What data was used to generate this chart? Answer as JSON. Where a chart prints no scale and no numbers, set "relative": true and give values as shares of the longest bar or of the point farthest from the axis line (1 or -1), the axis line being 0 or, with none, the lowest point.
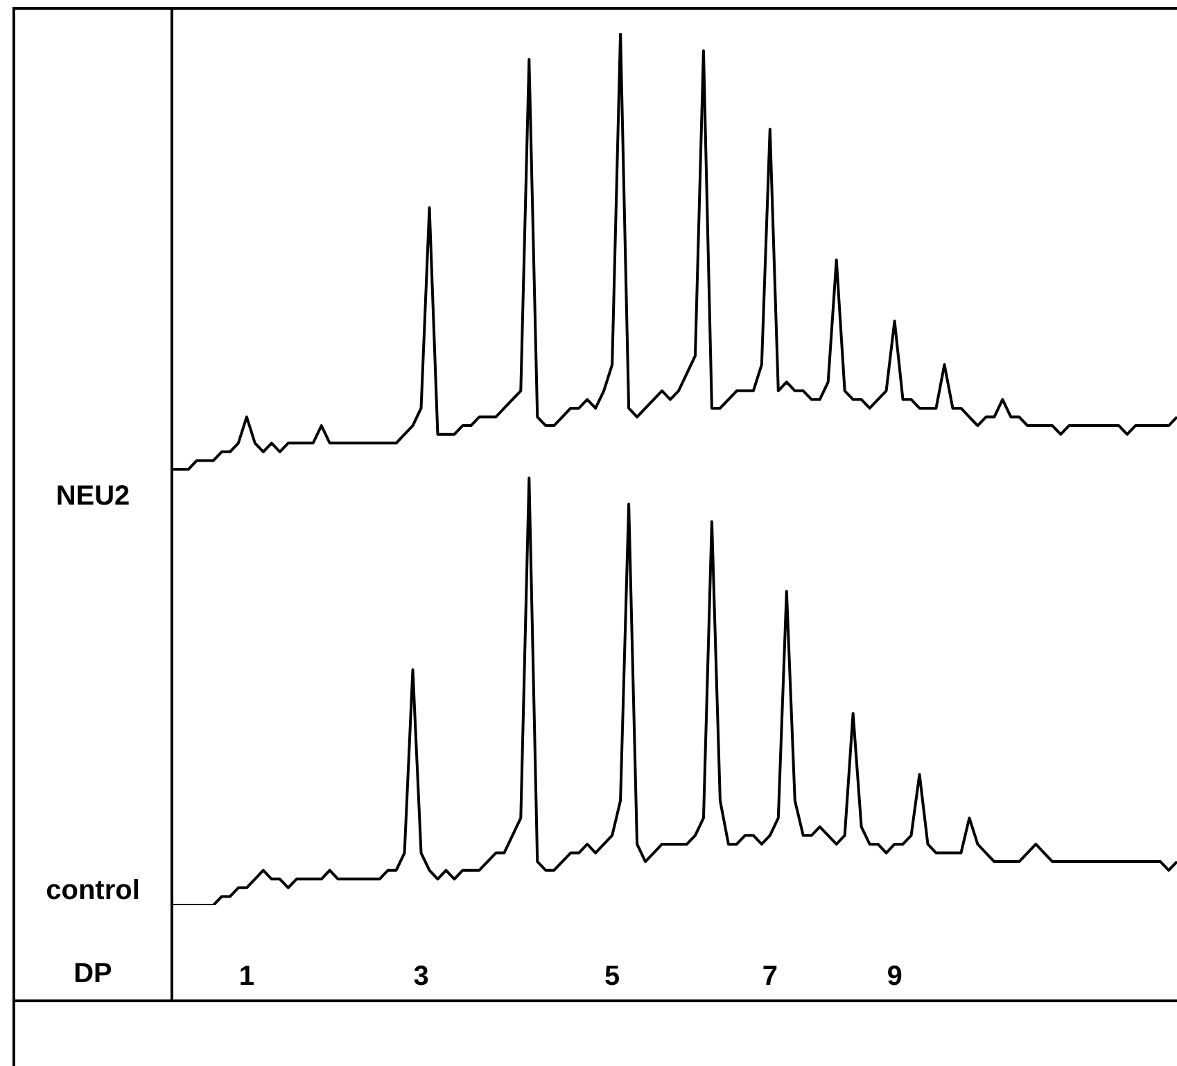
{
  "chart_data": {
    "type": "line",
    "relative": true,
    "xlabel": "DP",
    "categories": [
      null,
      null,
      null,
      null,
      null,
      null,
      null,
      null,
      null,
      "1",
      null,
      null,
      null,
      null,
      null,
      null,
      null,
      null,
      null,
      null,
      null,
      null,
      null,
      null,
      null,
      null,
      null,
      null,
      null,
      null,
      "3",
      null,
      null,
      null,
      null,
      null,
      null,
      null,
      null,
      null,
      null,
      null,
      null,
      null,
      null,
      null,
      null,
      null,
      null,
      null,
      null,
      null,
      null,
      "5",
      null,
      null,
      null,
      null,
      null,
      null,
      null,
      null,
      null,
      null,
      null,
      null,
      null,
      null,
      null,
      null,
      null,
      null,
      "7",
      null,
      null,
      null,
      null,
      null,
      null,
      null,
      null,
      null,
      null,
      null,
      null,
      null,
      null,
      "9",
      null,
      null,
      null,
      null,
      null,
      null,
      null,
      null,
      null,
      null,
      null,
      null,
      null,
      null,
      null,
      null,
      null,
      null,
      null,
      null,
      null,
      null,
      null,
      null,
      null,
      null,
      null,
      null,
      null,
      null,
      null,
      null,
      null,
      null
    ],
    "series": [
      {
        "name": "NEU2",
        "color": "#000000",
        "values": [
          0.5,
          0.5,
          0.5,
          0.51,
          0.51,
          0.51,
          0.52,
          0.52,
          0.53,
          0.56,
          0.53,
          0.52,
          0.53,
          0.52,
          0.53,
          0.53,
          0.53,
          0.53,
          0.55,
          0.53,
          0.53,
          0.53,
          0.53,
          0.53,
          0.53,
          0.53,
          0.53,
          0.53,
          0.54,
          0.55,
          0.57,
          0.8,
          0.54,
          0.54,
          0.54,
          0.55,
          0.55,
          0.56,
          0.56,
          0.56,
          0.57,
          0.58,
          0.59,
          0.97,
          0.56,
          0.55,
          0.55,
          0.56,
          0.57,
          0.57,
          0.58,
          0.57,
          0.59,
          0.62,
          1,
          0.57,
          0.56,
          0.57,
          0.58,
          0.59,
          0.58,
          0.59,
          0.61,
          0.63,
          0.98,
          0.57,
          0.57,
          0.58,
          0.59,
          0.59,
          0.59,
          0.62,
          0.89,
          0.59,
          0.6,
          0.59,
          0.59,
          0.58,
          0.58,
          0.6,
          0.74,
          0.59,
          0.58,
          0.58,
          0.57,
          0.58,
          0.59,
          0.67,
          0.58,
          0.58,
          0.57,
          0.57,
          0.57,
          0.62,
          0.57,
          0.57,
          0.56,
          0.55,
          0.56,
          0.56,
          0.58,
          0.56,
          0.56,
          0.55,
          0.55,
          0.55,
          0.55,
          0.54,
          0.55,
          0.55,
          0.55,
          0.55,
          0.55,
          0.55,
          0.55,
          0.54,
          0.55,
          0.55,
          0.55,
          0.55,
          0.55,
          0.56
        ]
      },
      {
        "name": "control",
        "color": "#000000",
        "values": [
          0.0,
          0.0,
          0.0,
          0,
          0.0,
          0.0,
          0.01,
          0.01,
          0.02,
          0.02,
          0.03,
          0.04,
          0.03,
          0.03,
          0.02,
          0.03,
          0.03,
          0.03,
          0.03,
          0.04,
          0.03,
          0.03,
          0.03,
          0.03,
          0.03,
          0.03,
          0.04,
          0.04,
          0.06,
          0.27,
          0.06,
          0.04,
          0.03,
          0.04,
          0.03,
          0.04,
          0.04,
          0.04,
          0.05,
          0.06,
          0.06,
          0.08,
          0.1,
          0.49,
          0.05,
          0.04,
          0.04,
          0.05,
          0.06,
          0.06,
          0.07,
          0.06,
          0.07,
          0.08,
          0.12,
          0.46,
          0.07,
          0.05,
          0.06,
          0.07,
          0.07,
          0.07,
          0.07,
          0.08,
          0.1,
          0.44,
          0.12,
          0.07,
          0.07,
          0.08,
          0.08,
          0.07,
          0.08,
          0.1,
          0.36,
          0.12,
          0.08,
          0.08,
          0.09,
          0.08,
          0.07,
          0.08,
          0.22,
          0.09,
          0.07,
          0.07,
          0.06,
          0.07,
          0.07,
          0.08,
          0.15,
          0.07,
          0.06,
          0.06,
          0.06,
          0.06,
          0.1,
          0.07,
          0.06,
          0.05,
          0.05,
          0.05,
          0.05,
          0.06,
          0.07,
          0.06,
          0.05,
          0.05,
          0.05,
          0.05,
          0.05,
          0.05,
          0.05,
          0.05,
          0.05,
          0.05,
          0.05,
          0.05,
          0.05,
          0.05,
          0.04,
          0.05
        ]
      }
    ]
  }
}
